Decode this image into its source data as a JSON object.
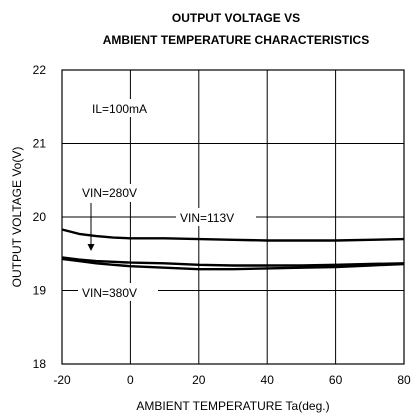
{
  "chart_data": {
    "type": "line",
    "title_line1": "OUTPUT VOLTAGE VS",
    "title_line2": "AMBIENT TEMPERATURE CHARACTERISTICS",
    "xlabel": "AMBIENT TEMPERATURE Ta(deg.)",
    "ylabel": "OUTPUT VOLTAGE Vo(V)",
    "xlim": [
      -20,
      80
    ],
    "ylim": [
      18,
      22
    ],
    "x_ticks": [
      -20,
      0,
      20,
      40,
      60,
      80
    ],
    "y_ticks": [
      18,
      19,
      20,
      21,
      22
    ],
    "grid": true,
    "annotations": {
      "condition": "IL=100mA",
      "vin280": "VIN=280V",
      "vin113": "VIN=113V",
      "vin380": "VIN=380V"
    },
    "series": [
      {
        "label_key": "vin113",
        "x": [
          -20,
          -15,
          -10,
          -5,
          0,
          10,
          20,
          30,
          40,
          50,
          60,
          70,
          80
        ],
        "values": [
          19.83,
          19.77,
          19.74,
          19.72,
          19.71,
          19.71,
          19.7,
          19.69,
          19.68,
          19.68,
          19.68,
          19.69,
          19.7
        ]
      },
      {
        "label_key": "vin280",
        "x": [
          -20,
          -15,
          -10,
          -5,
          0,
          10,
          20,
          30,
          40,
          50,
          60,
          70,
          80
        ],
        "values": [
          19.45,
          19.42,
          19.4,
          19.39,
          19.38,
          19.37,
          19.35,
          19.34,
          19.34,
          19.34,
          19.35,
          19.36,
          19.37
        ]
      },
      {
        "label_key": "vin380",
        "x": [
          -20,
          -15,
          -10,
          -5,
          0,
          10,
          20,
          30,
          40,
          50,
          60,
          70,
          80
        ],
        "values": [
          19.43,
          19.4,
          19.37,
          19.35,
          19.33,
          19.31,
          19.29,
          19.29,
          19.3,
          19.31,
          19.32,
          19.34,
          19.36
        ]
      }
    ]
  }
}
